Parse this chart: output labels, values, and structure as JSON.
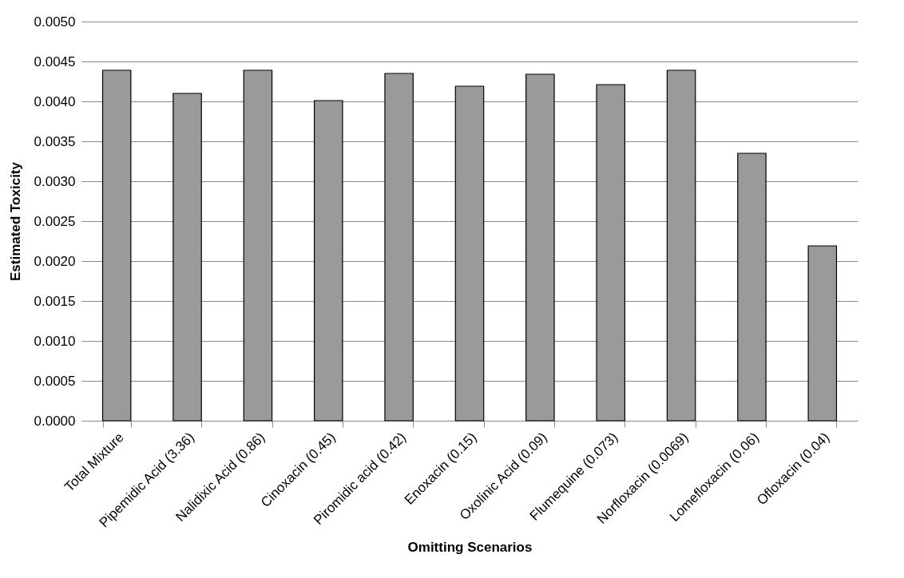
{
  "chart_data": {
    "type": "bar",
    "xlabel": "Omitting Scenarios",
    "ylabel": "Estimated Toxicity",
    "categories": [
      "Total Mixture",
      "Pipemidic Acid (3.36)",
      "Nalidixic Acid (0.86)",
      "Cinoxacin (0.45)",
      "Piromidic acid (0.42)",
      "Enoxacin (0.15)",
      "Oxolinic Acid (0.09)",
      "Flumequine (0.073)",
      "Norfloxacin (0.0069)",
      "Lomefloxacin (0.06)",
      "Ofloxacin (0.04)"
    ],
    "values": [
      0.00439,
      0.0041,
      0.00439,
      0.00401,
      0.00435,
      0.00419,
      0.00434,
      0.00421,
      0.00439,
      0.00335,
      0.00219
    ],
    "color": "#9a9a9a",
    "ylim": [
      0,
      0.005
    ],
    "yticks": [
      {
        "value": 0,
        "label": "0.0000"
      },
      {
        "value": 0.0005,
        "label": "0.0005"
      },
      {
        "value": 0.001,
        "label": "0.0010"
      },
      {
        "value": 0.0015,
        "label": "0.0015"
      },
      {
        "value": 0.002,
        "label": "0.0020"
      },
      {
        "value": 0.0025,
        "label": "0.0025"
      },
      {
        "value": 0.003,
        "label": "0.0030"
      },
      {
        "value": 0.0035,
        "label": "0.0035"
      },
      {
        "value": 0.004,
        "label": "0.0040"
      },
      {
        "value": 0.0045,
        "label": "0.0045"
      },
      {
        "value": 0.005,
        "label": "0.0050"
      }
    ],
    "grid": "y"
  }
}
